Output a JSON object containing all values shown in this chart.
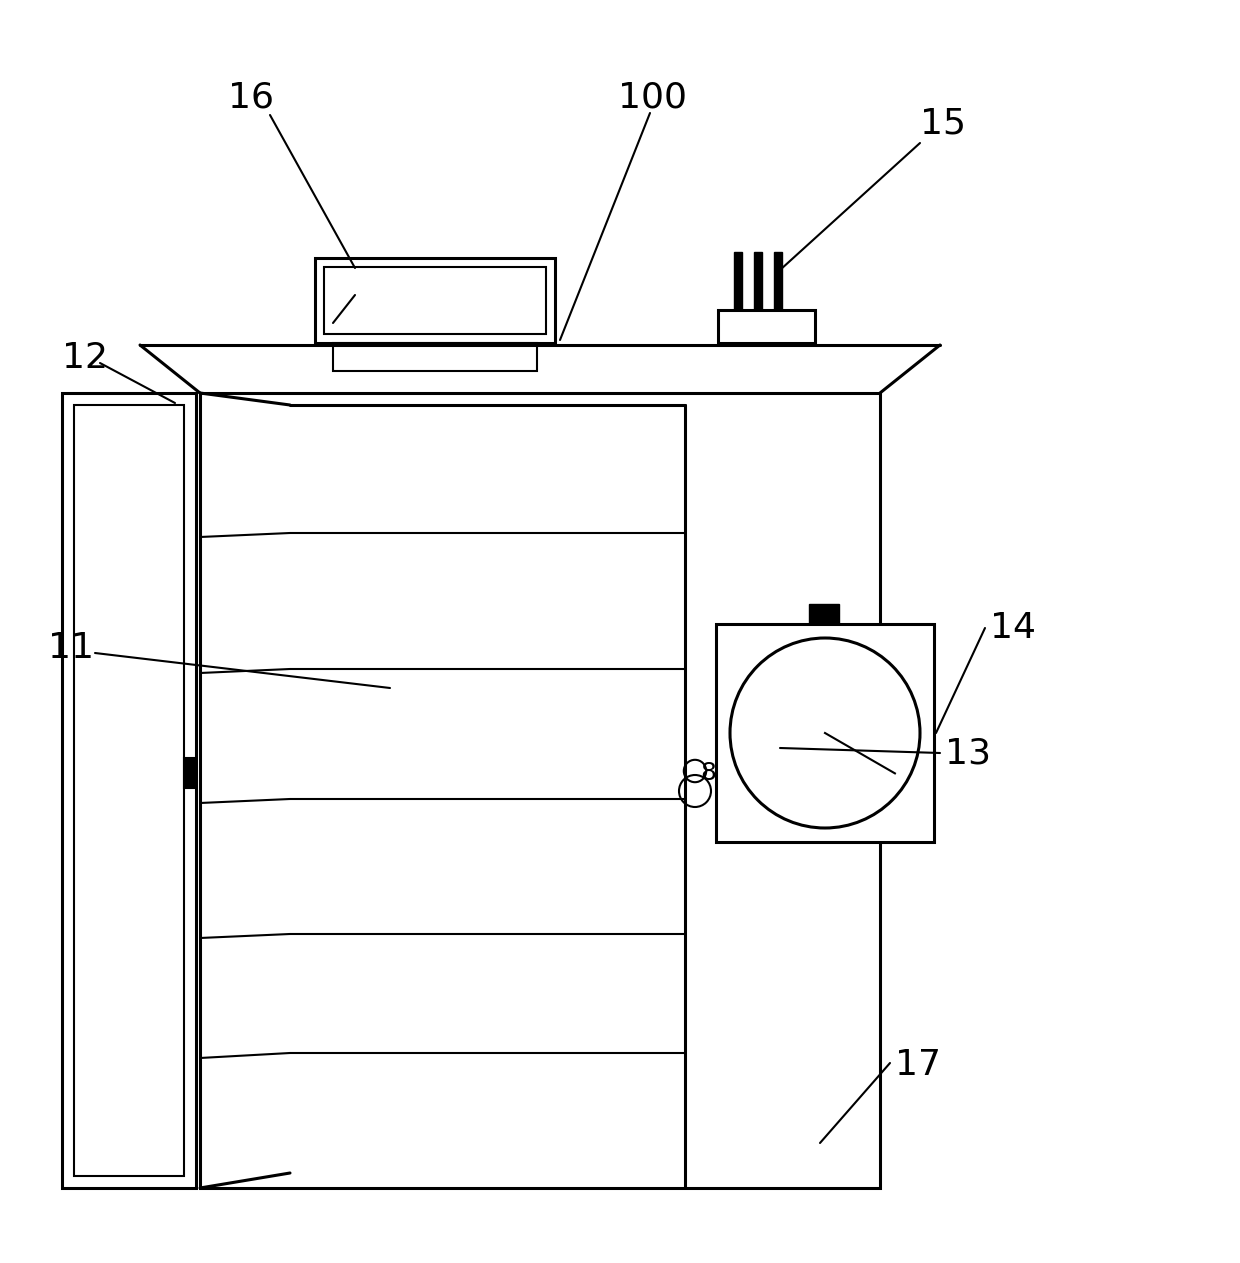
{
  "bg_color": "#ffffff",
  "line_color": "#000000",
  "lw_main": 2.2,
  "lw_thin": 1.5,
  "fig_width": 12.4,
  "fig_height": 12.63
}
